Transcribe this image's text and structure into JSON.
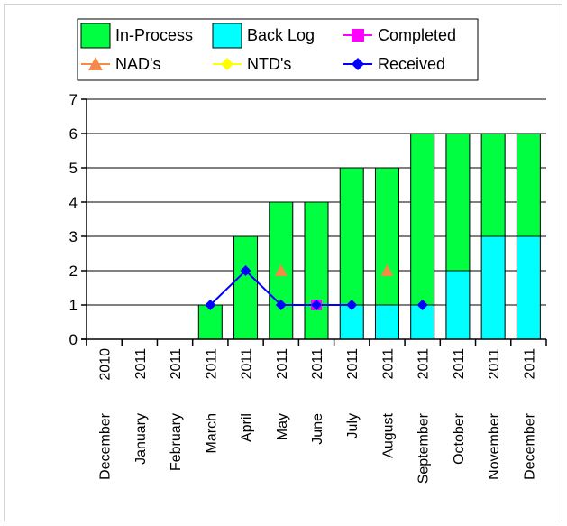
{
  "chart_data": {
    "type": "bar",
    "categories": [
      [
        "December",
        "2010"
      ],
      [
        "January",
        "2011"
      ],
      [
        "February",
        "2011"
      ],
      [
        "March",
        "2011"
      ],
      [
        "April",
        "2011"
      ],
      [
        "May",
        "2011"
      ],
      [
        "June",
        "2011"
      ],
      [
        "July",
        "2011"
      ],
      [
        "August",
        "2011"
      ],
      [
        "September",
        "2011"
      ],
      [
        "October",
        "2011"
      ],
      [
        "November",
        "2011"
      ],
      [
        "December",
        "2011"
      ]
    ],
    "stacked": true,
    "ylim": [
      0,
      7
    ],
    "yticks": [
      "0",
      "1",
      "2",
      "3",
      "4",
      "5",
      "6",
      "7"
    ],
    "grid": true,
    "legend_position": "top",
    "bar_series": [
      {
        "name": "Back Log",
        "color": "#00ffff",
        "values": [
          0,
          0,
          0,
          0,
          0,
          0,
          0,
          1,
          1,
          1,
          2,
          3,
          3
        ]
      },
      {
        "name": "In-Process",
        "color": "#00ff40",
        "values": [
          0,
          0,
          0,
          1,
          3,
          4,
          4,
          4,
          4,
          5,
          4,
          3,
          3
        ]
      }
    ],
    "marker_series": [
      {
        "name": "Completed",
        "color": "#ff00ff",
        "marker": "square",
        "line": false,
        "values": [
          null,
          null,
          null,
          null,
          null,
          null,
          1,
          null,
          null,
          null,
          null,
          null,
          null
        ]
      },
      {
        "name": "NAD's",
        "color": "#f48a4a",
        "marker": "triangle",
        "line": false,
        "values": [
          null,
          null,
          null,
          null,
          null,
          2,
          null,
          null,
          2,
          null,
          null,
          null,
          null
        ]
      },
      {
        "name": "NTD's",
        "color": "#ffff00",
        "marker": "diamond",
        "line": false,
        "values": [
          null,
          null,
          null,
          null,
          null,
          null,
          null,
          null,
          null,
          null,
          null,
          null,
          null
        ]
      },
      {
        "name": "Received",
        "color": "#0000ff",
        "marker": "diamond",
        "line": true,
        "values": [
          null,
          null,
          null,
          1,
          2,
          1,
          1,
          1,
          null,
          1,
          null,
          null,
          null
        ]
      }
    ],
    "legend": [
      {
        "label": "In-Process",
        "swatch": "box",
        "color": "#00ff40"
      },
      {
        "label": "Back Log",
        "swatch": "box",
        "color": "#00ffff"
      },
      {
        "label": "Completed",
        "swatch": "square-line",
        "color": "#ff00ff"
      },
      {
        "label": "NAD's",
        "swatch": "triangle-line",
        "color": "#f48a4a"
      },
      {
        "label": "NTD's",
        "swatch": "diamond-line",
        "color": "#ffff00"
      },
      {
        "label": "Received",
        "swatch": "diamond-line",
        "color": "#0000ff"
      }
    ]
  }
}
